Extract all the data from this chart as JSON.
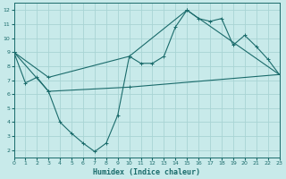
{
  "xlabel": "Humidex (Indice chaleur)",
  "background_color": "#c8eaea",
  "grid_color": "#a8d4d4",
  "line_color": "#1a6b6b",
  "xlim": [
    0,
    23
  ],
  "ylim": [
    1.5,
    12.5
  ],
  "xticks": [
    0,
    1,
    2,
    3,
    4,
    5,
    6,
    7,
    8,
    9,
    10,
    11,
    12,
    13,
    14,
    15,
    16,
    17,
    18,
    19,
    20,
    21,
    22,
    23
  ],
  "yticks": [
    2,
    3,
    4,
    5,
    6,
    7,
    8,
    9,
    10,
    11,
    12
  ],
  "series_zigzag": {
    "x": [
      0,
      1,
      2,
      3,
      4,
      5,
      6,
      7,
      8,
      9,
      10,
      11,
      12,
      13,
      14,
      15,
      16,
      17,
      18,
      19,
      20,
      21,
      22,
      23
    ],
    "y": [
      9.0,
      6.8,
      7.2,
      6.2,
      4.0,
      3.2,
      2.5,
      1.9,
      2.5,
      4.5,
      8.7,
      8.2,
      8.2,
      8.7,
      10.8,
      12.0,
      11.4,
      11.2,
      11.4,
      9.5,
      10.2,
      9.4,
      8.5,
      7.4
    ]
  },
  "series_upper": {
    "x": [
      0,
      3,
      10,
      15,
      23
    ],
    "y": [
      9.0,
      7.2,
      8.7,
      12.0,
      7.4
    ]
  },
  "series_lower": {
    "x": [
      0,
      3,
      10,
      23
    ],
    "y": [
      9.0,
      6.2,
      6.5,
      7.4
    ]
  }
}
